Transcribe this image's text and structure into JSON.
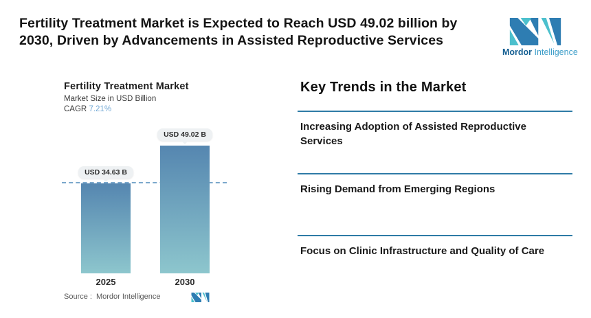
{
  "header": {
    "title_lines": [
      "Fertility Treatment Market is Expected to Reach USD 49.02 billion by",
      "2030, Driven by Advancements in Assisted Reproductive Services"
    ]
  },
  "brand": {
    "name_bold": "Mordor",
    "name_light": "Intelligence"
  },
  "chart": {
    "title": "Fertility  Treatment Market",
    "subtitle": "Market Size in USD Billion",
    "cagr_label": "CAGR",
    "cagr_value": "7.21%",
    "source_label": "Source :",
    "source_name": "Mordor Intelligence"
  },
  "chart_data": {
    "type": "bar",
    "title": "Fertility Treatment Market",
    "ylabel": "Market Size in USD Billion",
    "cagr_percent": 7.21,
    "categories": [
      "2025",
      "2030"
    ],
    "values": [
      34.63,
      49.02
    ],
    "value_labels": [
      "USD 34.63 B",
      "USD 49.02 B"
    ],
    "units": "USD Billion",
    "baseline_marker_value": 34.63,
    "ylim": [
      0,
      49.02
    ],
    "grid": false,
    "legend_position": "none"
  },
  "trends": {
    "heading": "Key Trends in the Market",
    "items": [
      "Increasing Adoption of Assisted Reproductive Services",
      "Rising Demand from Emerging Regions",
      "Focus on Clinic Infrastructure and Quality of Care"
    ]
  },
  "colors": {
    "accent_blue": "#2e7db2",
    "accent_teal": "#4cc0cd",
    "bar_top": "#5586b0",
    "bar_bottom": "#8dc6cd",
    "dashed_line": "#7aa7cb",
    "divider": "#2e7ba6",
    "cagr_value": "#73a9d6"
  }
}
